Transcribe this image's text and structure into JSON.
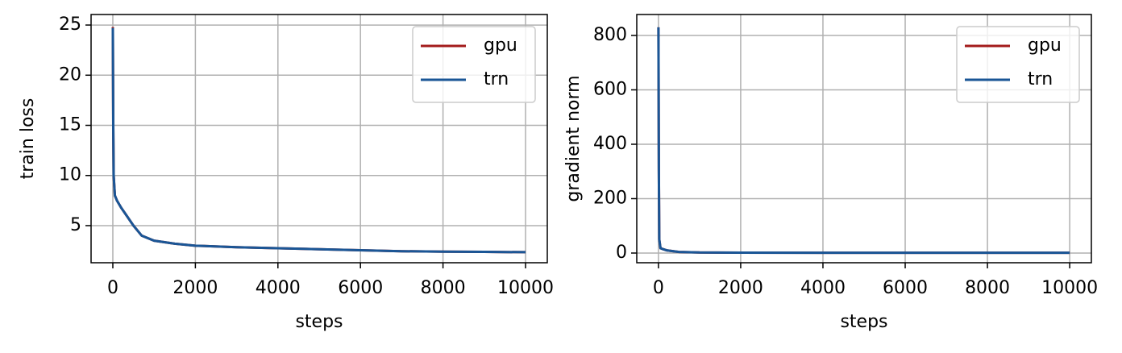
{
  "chart_data": [
    {
      "type": "line",
      "xlabel": "steps",
      "ylabel": "train loss",
      "x": [
        0,
        10,
        20,
        50,
        100,
        200,
        300,
        500,
        700,
        1000,
        1500,
        2000,
        3000,
        4000,
        5000,
        6000,
        7000,
        8000,
        9000,
        10000
      ],
      "series": [
        {
          "name": "gpu",
          "color": "#a31b1b",
          "values": [
            24.8,
            15,
            10,
            8,
            7.5,
            6.8,
            6.2,
            5,
            4,
            3.5,
            3.2,
            3.0,
            2.85,
            2.75,
            2.65,
            2.55,
            2.45,
            2.4,
            2.38,
            2.35
          ]
        },
        {
          "name": "trn",
          "color": "#1a5696",
          "values": [
            24.7,
            15,
            10,
            8,
            7.5,
            6.8,
            6.2,
            5,
            4,
            3.5,
            3.2,
            3.0,
            2.85,
            2.75,
            2.65,
            2.55,
            2.45,
            2.4,
            2.38,
            2.35
          ]
        }
      ],
      "xlim": [
        -527,
        10527
      ],
      "ylim": [
        1.3,
        26.05
      ],
      "xticks": [
        0,
        2000,
        4000,
        6000,
        8000,
        10000
      ],
      "yticks": [
        5,
        10,
        15,
        20,
        25
      ],
      "grid": true,
      "legend": "upper right"
    },
    {
      "type": "line",
      "xlabel": "steps",
      "ylabel": "gradient norm",
      "x": [
        0,
        10,
        20,
        50,
        100,
        200,
        500,
        1000,
        2000,
        4000,
        6000,
        8000,
        10000
      ],
      "series": [
        {
          "name": "gpu",
          "color": "#a31b1b",
          "values": [
            830,
            300,
            50,
            18,
            15,
            10,
            4,
            2,
            1.5,
            1.2,
            1.1,
            1,
            1
          ]
        },
        {
          "name": "trn",
          "color": "#1a5696",
          "values": [
            830,
            300,
            50,
            18,
            15,
            10,
            4,
            2,
            1.5,
            1.2,
            1.1,
            1,
            1
          ]
        }
      ],
      "xlim": [
        -527,
        10527
      ],
      "ylim": [
        -35.6,
        877
      ],
      "xticks": [
        0,
        2000,
        4000,
        6000,
        8000,
        10000
      ],
      "yticks": [
        0,
        200,
        400,
        600,
        800
      ],
      "grid": true,
      "legend": "upper right"
    }
  ]
}
